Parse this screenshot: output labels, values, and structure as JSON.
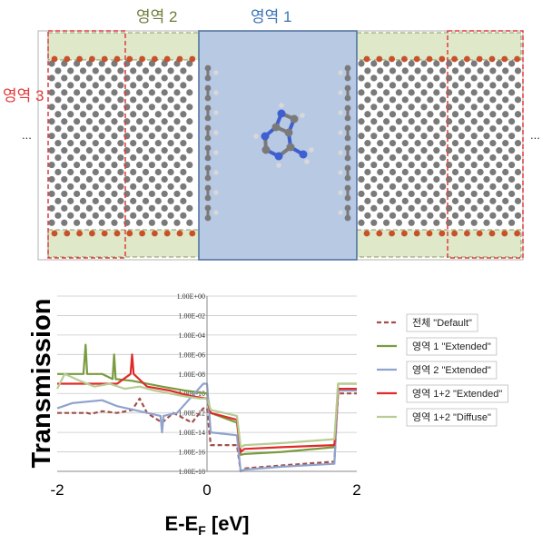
{
  "structure": {
    "region_labels": {
      "region2": "영역 2",
      "region1": "영역 1",
      "region3": "영역 3"
    },
    "ellipsis_left": "...",
    "ellipsis_right": "...",
    "colors": {
      "region1_fill": "#b8c9e4",
      "region1_border": "#4a6e9c",
      "region2_fill": "#dfe8c8",
      "region2_label": "#6c7d3a",
      "region1_label": "#3a73b5",
      "region3_border": "#e23a3a",
      "carbon": "#7a7a7a",
      "oxygen": "#c8502a",
      "hydrogen": "#d8d8d8",
      "nitrogen": "#3e5fcf"
    }
  },
  "chart_data": {
    "type": "line",
    "title": "",
    "xlabel": "E-E",
    "xlabel_sub": "F",
    "xlabel_unit": " [eV]",
    "ylabel": "Transmission",
    "xlim": [
      -2,
      2
    ],
    "ylim_log10": [
      -18,
      0
    ],
    "y_scale": "log",
    "grid": "horizontal",
    "legend_position": "right",
    "x_ticks": [
      "-2",
      "0",
      "2"
    ],
    "y_ticks": [
      "1.00E+00",
      "1.00E-02",
      "1.00E-04",
      "1.00E-06",
      "1.00E-08",
      "1.00E-10",
      "1.00E-12",
      "1.00E-14",
      "1.00E-16",
      "1.00E-18"
    ],
    "series": [
      {
        "name": "전체 \"Default\"",
        "color": "#a0504a",
        "dash": "dashed",
        "x": [
          -2,
          -1.6,
          -1.55,
          -1.4,
          -1.2,
          -1.0,
          -0.9,
          -0.8,
          -0.6,
          -0.45,
          -0.2,
          -0.05,
          0.0,
          0.05,
          0.4,
          0.45,
          0.5,
          1.0,
          1.7,
          1.75,
          2.0
        ],
        "y": [
          1e-12,
          1e-12,
          8e-13,
          1.5e-12,
          1e-12,
          2e-12,
          3e-11,
          1e-12,
          1e-13,
          1e-12,
          1e-13,
          3e-12,
          3e-12,
          5e-16,
          5e-16,
          1e-18,
          2e-18,
          4e-18,
          1e-17,
          1e-10,
          1e-10
        ]
      },
      {
        "name": "영역 1 \"Extended\"",
        "color": "#7a9b40",
        "dash": "solid",
        "x": [
          -2,
          -1.8,
          -1.65,
          -1.62,
          -1.6,
          -1.4,
          -1.26,
          -1.24,
          -1.22,
          -1.0,
          -0.6,
          -0.3,
          0.0,
          0.05,
          0.4,
          0.45,
          0.5,
          1.0,
          1.7,
          1.75,
          2.0
        ],
        "y": [
          1e-08,
          1e-08,
          1e-08,
          1e-05,
          1e-08,
          1e-08,
          3e-09,
          1e-06,
          3e-09,
          2e-09,
          5e-10,
          2e-10,
          1e-10,
          1e-12,
          1e-13,
          5e-17,
          6e-17,
          1e-16,
          3e-16,
          1e-09,
          1e-09
        ]
      },
      {
        "name": "영역 2 \"Extended\"",
        "color": "#8fa3cc",
        "dash": "solid",
        "x": [
          -2,
          -1.8,
          -1.4,
          -1.2,
          -0.62,
          -0.6,
          -0.58,
          -0.4,
          -0.05,
          0.0,
          0.05,
          0.4,
          0.45,
          0.5,
          1.0,
          1.7,
          1.75,
          2.0
        ],
        "y": [
          3e-12,
          1e-11,
          2e-11,
          5e-12,
          5e-13,
          1e-14,
          5e-13,
          1e-12,
          1e-09,
          1e-09,
          1e-14,
          5e-15,
          1e-18,
          1.5e-18,
          3e-18,
          6e-18,
          2e-10,
          2e-10
        ]
      },
      {
        "name": "영역 1+2 \"Extended\"",
        "color": "#e02a2a",
        "dash": "solid",
        "x": [
          -2,
          -1.6,
          -1.4,
          -1.2,
          -1.02,
          -1.0,
          -0.98,
          -0.8,
          -0.5,
          -0.2,
          0.0,
          0.05,
          0.4,
          0.45,
          0.5,
          1.0,
          1.7,
          1.75,
          2.0
        ],
        "y": [
          1e-09,
          1e-09,
          1e-09,
          1e-09,
          1e-08,
          1e-06,
          1e-08,
          5e-10,
          2e-10,
          5e-11,
          3e-11,
          1e-12,
          2e-13,
          1e-16,
          2e-16,
          3e-16,
          5e-16,
          3e-10,
          3e-10
        ]
      },
      {
        "name": "영역 1+2 \"Diffuse\"",
        "color": "#b7cc94",
        "dash": "solid",
        "x": [
          -2,
          -1.9,
          -1.7,
          -1.5,
          -1.3,
          -1.1,
          -0.9,
          -0.7,
          -0.5,
          -0.3,
          -0.1,
          0.0,
          0.05,
          0.4,
          0.45,
          0.5,
          1.0,
          1.7,
          1.75,
          2.0
        ],
        "y": [
          3e-10,
          1e-08,
          2e-09,
          5e-10,
          1e-09,
          3e-10,
          5e-10,
          2e-10,
          1e-10,
          5e-11,
          3e-11,
          3e-11,
          2e-12,
          5e-13,
          3e-16,
          5e-16,
          8e-16,
          2e-15,
          1e-09,
          1e-09
        ]
      }
    ]
  }
}
